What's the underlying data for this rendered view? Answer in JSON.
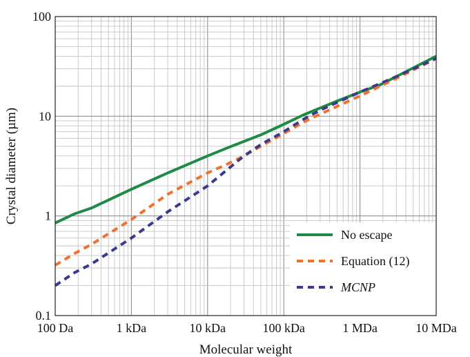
{
  "chart_data": {
    "type": "line",
    "xscale": "log",
    "yscale": "log",
    "xlabel": "Molecular weight",
    "ylabel": "Crystal diameter (µm)",
    "xlim": [
      100,
      10000000
    ],
    "ylim": [
      0.1,
      100
    ],
    "grid": true,
    "legend_position": "bottom-right",
    "x_ticks": [
      {
        "value": 100,
        "label": "100 Da"
      },
      {
        "value": 1000,
        "label": "1 kDa"
      },
      {
        "value": 10000,
        "label": "10 kDa"
      },
      {
        "value": 100000,
        "label": "100  kDa"
      },
      {
        "value": 1000000,
        "label": "1 MDa"
      },
      {
        "value": 10000000,
        "label": "10 MDa"
      }
    ],
    "y_ticks": [
      {
        "value": 0.1,
        "label": "0.1"
      },
      {
        "value": 1,
        "label": "1"
      },
      {
        "value": 10,
        "label": "10"
      },
      {
        "value": 100,
        "label": "100"
      }
    ],
    "series": [
      {
        "name": "No escape",
        "color": "#1e8a44",
        "style": "solid",
        "x": [
          100,
          180,
          300,
          1000,
          3000,
          10000,
          18000,
          50000,
          100000,
          180000,
          500000,
          1000000,
          1800000,
          3000000,
          10000000
        ],
        "y": [
          0.85,
          1.05,
          1.2,
          1.85,
          2.7,
          4.0,
          4.8,
          6.5,
          8.3,
          10.3,
          14.2,
          17.5,
          20.5,
          25.0,
          40.0
        ]
      },
      {
        "name": "Equation (12)",
        "italic": false,
        "color": "#f07030",
        "style": "dashed",
        "x": [
          100,
          180,
          300,
          1000,
          3000,
          10000,
          18000,
          30000,
          50000,
          100000,
          180000,
          300000,
          1000000,
          3000000,
          10000000
        ],
        "y": [
          0.32,
          0.42,
          0.52,
          0.92,
          1.65,
          2.7,
          3.3,
          4.0,
          5.0,
          6.7,
          8.7,
          10.5,
          16.0,
          24.0,
          38.0
        ]
      },
      {
        "name": "MCNP",
        "italic": true,
        "color": "#3a3a8c",
        "style": "dashed",
        "x": [
          100,
          180,
          300,
          1000,
          3000,
          10000,
          18000,
          30000,
          50000,
          100000,
          180000,
          300000,
          1000000,
          3000000,
          10000000
        ],
        "y": [
          0.2,
          0.27,
          0.33,
          0.6,
          1.1,
          2.0,
          2.9,
          4.0,
          5.2,
          7.0,
          9.3,
          11.5,
          17.5,
          25.0,
          38.0
        ]
      }
    ]
  }
}
